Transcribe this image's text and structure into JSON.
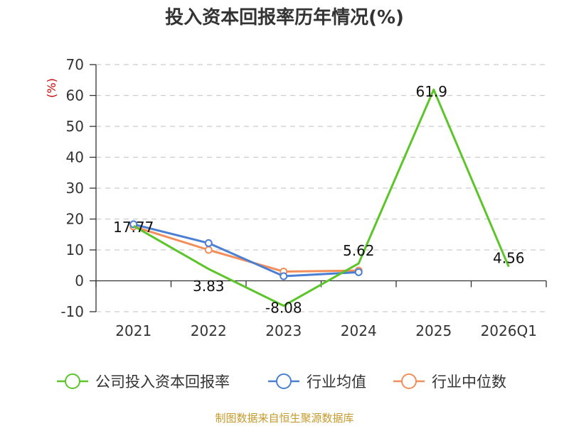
{
  "chart_data": {
    "type": "line",
    "title": "投入资本回报率历年情况(%)",
    "ylabel": "(%)",
    "categories": [
      "2021",
      "2022",
      "2023",
      "2024",
      "2025",
      "2026Q1"
    ],
    "ylim": [
      -10,
      70
    ],
    "yticks": [
      70,
      60,
      50,
      40,
      30,
      20,
      10,
      0,
      -10
    ],
    "grid": true,
    "legend_position": "bottom",
    "series": [
      {
        "name": "公司投入资本回报率",
        "color": "#5bc52a",
        "values": [
          17.77,
          3.83,
          -8.08,
          5.62,
          61.9,
          4.56
        ],
        "labels": [
          "17.77",
          "3.83",
          "-8.08",
          "5.62",
          "61.9",
          "4.56"
        ]
      },
      {
        "name": "行业均值",
        "color": "#4a7fd4",
        "values": [
          18.3,
          12.2,
          1.5,
          2.8,
          null,
          null
        ]
      },
      {
        "name": "行业中位数",
        "color": "#f28e5a",
        "values": [
          17.6,
          10.0,
          3.0,
          3.3,
          null,
          null
        ]
      }
    ]
  },
  "source_text": "制图数据来自恒生聚源数据库"
}
